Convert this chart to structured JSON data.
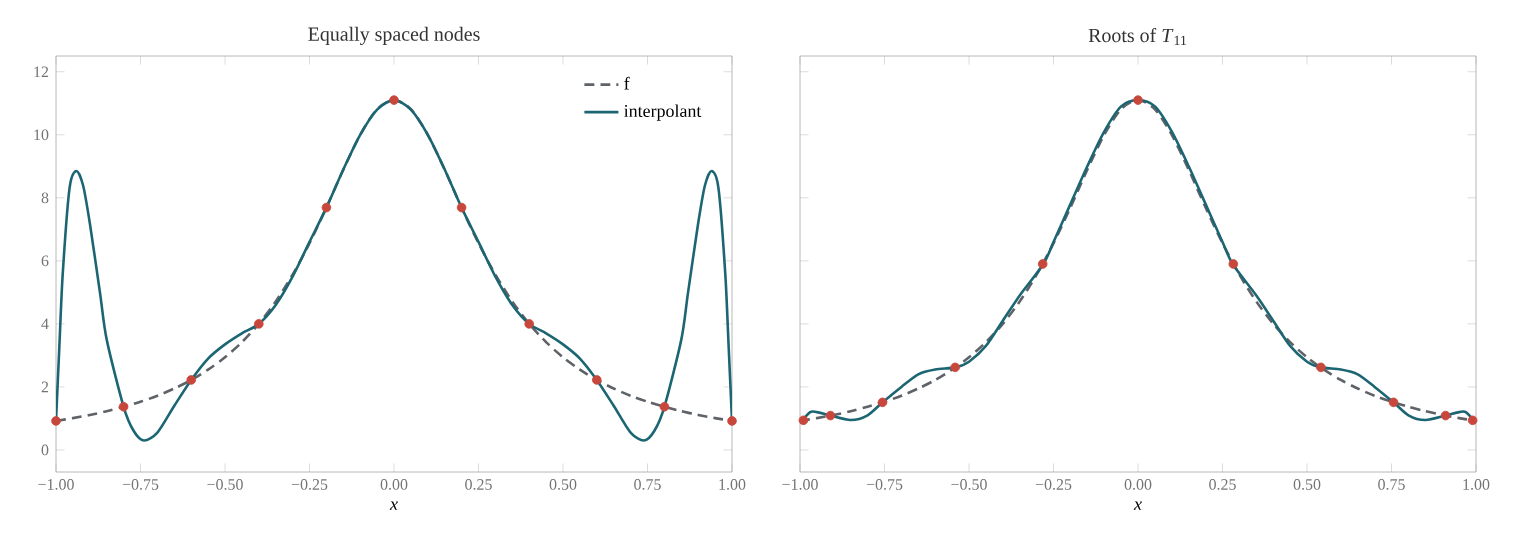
{
  "chart_data": [
    {
      "type": "line",
      "title": "Equally spaced nodes",
      "xlabel": "x",
      "xlim": [
        -1,
        1
      ],
      "ylim": [
        -0.7,
        12.5
      ],
      "xticks": [
        {
          "value": -1,
          "label": "−1.00"
        },
        {
          "value": -0.75,
          "label": "−0.75"
        },
        {
          "value": -0.5,
          "label": "−0.50"
        },
        {
          "value": -0.25,
          "label": "−0.25"
        },
        {
          "value": 0,
          "label": "0.00"
        },
        {
          "value": 0.25,
          "label": "0.25"
        },
        {
          "value": 0.5,
          "label": "0.50"
        },
        {
          "value": 0.75,
          "label": "0.75"
        },
        {
          "value": 1,
          "label": "1.00"
        }
      ],
      "yticks": [
        0,
        2,
        4,
        6,
        8,
        10,
        12
      ],
      "legend": "top right",
      "grid": false,
      "series": [
        {
          "name": "f",
          "line_style": "dashed",
          "color": "#5f6368",
          "x": [
            -1,
            -0.95,
            -0.9,
            -0.85,
            -0.8,
            -0.75,
            -0.7,
            -0.65,
            -0.6,
            -0.55,
            -0.5,
            -0.45,
            -0.4,
            -0.35,
            -0.3,
            -0.25,
            -0.2,
            -0.15,
            -0.1,
            -0.05,
            0,
            0.05,
            0.1,
            0.15,
            0.2,
            0.25,
            0.3,
            0.35,
            0.4,
            0.45,
            0.5,
            0.55,
            0.6,
            0.65,
            0.7,
            0.75,
            0.8,
            0.85,
            0.9,
            0.95,
            1
          ],
          "values": [
            0.92,
            1.01,
            1.11,
            1.23,
            1.37,
            1.53,
            1.72,
            1.95,
            2.22,
            2.55,
            2.94,
            3.42,
            4.0,
            4.71,
            5.56,
            6.56,
            7.69,
            8.89,
            10.0,
            10.81,
            11.1,
            10.81,
            10.0,
            8.89,
            7.69,
            6.56,
            5.56,
            4.71,
            4.0,
            3.42,
            2.94,
            2.55,
            2.22,
            1.95,
            1.72,
            1.53,
            1.37,
            1.23,
            1.11,
            1.01,
            0.92
          ]
        },
        {
          "name": "interpolant",
          "line_style": "solid",
          "color": "#1b6672",
          "x": [
            -1,
            -0.99,
            -0.98,
            -0.96,
            -0.94,
            -0.92,
            -0.9,
            -0.87,
            -0.85,
            -0.8,
            -0.77,
            -0.74,
            -0.7,
            -0.65,
            -0.6,
            -0.55,
            -0.5,
            -0.45,
            -0.4,
            -0.35,
            -0.3,
            -0.25,
            -0.2,
            -0.15,
            -0.1,
            -0.05,
            0,
            0.05,
            0.1,
            0.15,
            0.2,
            0.25,
            0.3,
            0.35,
            0.4,
            0.45,
            0.5,
            0.55,
            0.6,
            0.65,
            0.7,
            0.74,
            0.77,
            0.8,
            0.85,
            0.87,
            0.9,
            0.92,
            0.94,
            0.96,
            0.98,
            0.99,
            1
          ],
          "values": [
            0.92,
            3.3,
            5.6,
            8.3,
            8.85,
            8.4,
            7.2,
            5.0,
            3.5,
            1.37,
            0.6,
            0.3,
            0.55,
            1.4,
            2.22,
            2.9,
            3.35,
            3.7,
            4.0,
            4.6,
            5.5,
            6.6,
            7.69,
            8.9,
            10.0,
            10.8,
            11.1,
            10.8,
            10.0,
            8.9,
            7.69,
            6.6,
            5.5,
            4.6,
            4.0,
            3.7,
            3.35,
            2.9,
            2.22,
            1.4,
            0.55,
            0.3,
            0.6,
            1.37,
            3.5,
            5.0,
            7.2,
            8.4,
            8.85,
            8.3,
            5.6,
            3.3,
            0.92
          ]
        },
        {
          "type": "scatter",
          "marker": "circle",
          "color": "#c8473c",
          "x": [
            -1,
            -0.8,
            -0.6,
            -0.4,
            -0.2,
            0,
            0.2,
            0.4,
            0.6,
            0.8,
            1
          ],
          "values": [
            0.92,
            1.37,
            2.22,
            4.0,
            7.69,
            11.1,
            7.69,
            4.0,
            2.22,
            1.37,
            0.92
          ]
        }
      ]
    },
    {
      "type": "line",
      "title": "Roots of *T*$_{11}$",
      "xlabel": "x",
      "xlim": [
        -1,
        1
      ],
      "ylim": [
        -0.7,
        12.5
      ],
      "xticks": [
        {
          "value": -1,
          "label": "−1.00"
        },
        {
          "value": -0.75,
          "label": "−0.75"
        },
        {
          "value": -0.5,
          "label": "−0.50"
        },
        {
          "value": -0.25,
          "label": "−0.25"
        },
        {
          "value": 0,
          "label": "0.00"
        },
        {
          "value": 0.25,
          "label": "0.25"
        },
        {
          "value": 0.5,
          "label": "0.50"
        },
        {
          "value": 0.75,
          "label": "0.75"
        },
        {
          "value": 1,
          "label": "1.00"
        }
      ],
      "yticks": [
        0,
        2,
        4,
        6,
        8,
        10,
        12
      ],
      "tick_labels": "x",
      "legend": false,
      "grid": false,
      "series": [
        {
          "line_style": "dashed",
          "color": "#5f6368",
          "x": [
            -1,
            -0.95,
            -0.9,
            -0.85,
            -0.8,
            -0.75,
            -0.7,
            -0.65,
            -0.6,
            -0.55,
            -0.5,
            -0.45,
            -0.4,
            -0.35,
            -0.3,
            -0.25,
            -0.2,
            -0.15,
            -0.1,
            -0.05,
            0,
            0.05,
            0.1,
            0.15,
            0.2,
            0.25,
            0.3,
            0.35,
            0.4,
            0.45,
            0.5,
            0.55,
            0.6,
            0.65,
            0.7,
            0.75,
            0.8,
            0.85,
            0.9,
            0.95,
            1
          ],
          "values": [
            0.92,
            1.01,
            1.11,
            1.23,
            1.37,
            1.53,
            1.72,
            1.95,
            2.22,
            2.55,
            2.94,
            3.42,
            4.0,
            4.71,
            5.56,
            6.56,
            7.69,
            8.89,
            10.0,
            10.81,
            11.1,
            10.81,
            10.0,
            8.89,
            7.69,
            6.56,
            5.56,
            4.71,
            4.0,
            3.42,
            2.94,
            2.55,
            2.22,
            1.95,
            1.72,
            1.53,
            1.37,
            1.23,
            1.11,
            1.01,
            0.92
          ]
        },
        {
          "line_style": "solid",
          "color": "#1b6672",
          "x": [
            -1,
            -0.97,
            -0.95,
            -0.91,
            -0.85,
            -0.8,
            -0.756,
            -0.7,
            -0.65,
            -0.6,
            -0.54,
            -0.5,
            -0.45,
            -0.4,
            -0.35,
            -0.28,
            -0.25,
            -0.2,
            -0.15,
            -0.1,
            -0.05,
            0,
            0.05,
            0.1,
            0.15,
            0.2,
            0.25,
            0.28,
            0.35,
            0.4,
            0.45,
            0.5,
            0.54,
            0.6,
            0.65,
            0.7,
            0.756,
            0.8,
            0.85,
            0.91,
            0.95,
            0.97,
            1
          ],
          "values": [
            0.85,
            1.2,
            1.2,
            1.09,
            0.95,
            1.1,
            1.51,
            2.0,
            2.4,
            2.55,
            2.62,
            2.8,
            3.3,
            4.1,
            4.9,
            5.9,
            6.6,
            7.8,
            9.0,
            10.1,
            10.9,
            11.1,
            10.9,
            10.1,
            9.0,
            7.8,
            6.6,
            5.9,
            4.9,
            4.1,
            3.3,
            2.8,
            2.62,
            2.55,
            2.4,
            2.0,
            1.51,
            1.1,
            0.95,
            1.09,
            1.2,
            1.2,
            0.85
          ]
        },
        {
          "type": "scatter",
          "marker": "circle",
          "color": "#c8473c",
          "x": [
            -0.99,
            -0.91,
            -0.756,
            -0.541,
            -0.282,
            0,
            0.282,
            0.541,
            0.756,
            0.91,
            0.99
          ],
          "values": [
            0.94,
            1.09,
            1.51,
            2.62,
            5.9,
            11.1,
            5.9,
            2.62,
            1.51,
            1.09,
            0.94
          ]
        }
      ]
    }
  ]
}
